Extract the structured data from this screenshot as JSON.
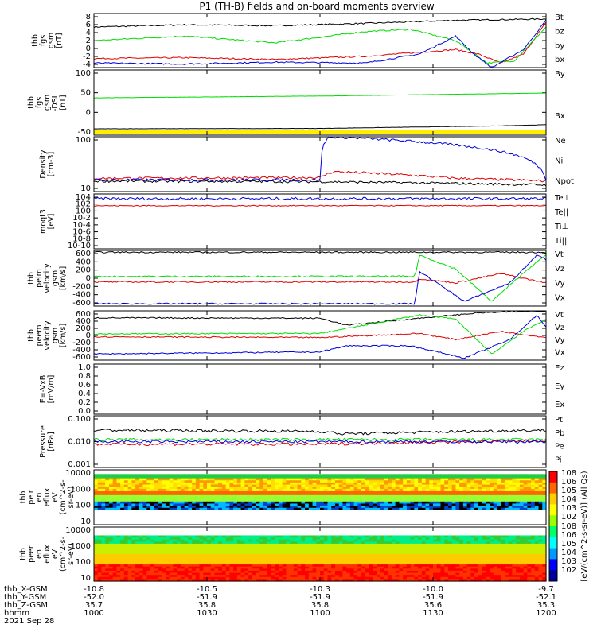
{
  "title": "P1 (TH-B) fields and on-board moments overview",
  "date": "2021 Sep 28",
  "colors": {
    "black": "#000000",
    "red": "#e00000",
    "green": "#00dd00",
    "blue": "#0000dd"
  },
  "ephemeris": {
    "labels": [
      "thb_X-GSM",
      "thb_Y-GSM",
      "thb_Z-GSM",
      "hhmm"
    ],
    "columns": [
      {
        "x": "-10.8",
        "y": "-52.0",
        "z": "35.7",
        "hhmm": "1000"
      },
      {
        "x": "-10.5",
        "y": "-51.9",
        "z": "35.8",
        "hhmm": "1030"
      },
      {
        "x": "-10.3",
        "y": "-51.9",
        "z": "35.8",
        "hhmm": "1100"
      },
      {
        "x": "-10.0",
        "y": "-51.9",
        "z": "35.6",
        "hhmm": "1130"
      },
      {
        "x": "-9.7",
        "y": "-52.1",
        "z": "35.3",
        "hhmm": "1200"
      }
    ]
  },
  "spectrogram_colorbar": {
    "label": "[eV/(cm^2-s-sr-eV)] (All Qs)",
    "upper_ticks": [
      "10^8",
      "10^6",
      "10^5",
      "10^4",
      "10^3",
      "10^2"
    ],
    "lower_ticks": [
      "10^8",
      "10^6",
      "10^5",
      "10^4",
      "10^3",
      "10^2"
    ]
  },
  "chart_data": [
    {
      "type": "line",
      "ylabel": [
        "thb",
        "fgs",
        "gsm",
        "[nT]"
      ],
      "yticks": [
        "8",
        "6",
        "4",
        "2",
        "0",
        "-2",
        "-4"
      ],
      "ylim": [
        -4,
        8
      ],
      "series": [
        {
          "name": "Bt",
          "color": "black",
          "points": [
            [
              0,
              5
            ],
            [
              0.2,
              5.5
            ],
            [
              0.4,
              5.3
            ],
            [
              0.6,
              5.8
            ],
            [
              0.8,
              6.5
            ],
            [
              1,
              6.8
            ]
          ]
        },
        {
          "name": "bz",
          "color": "red",
          "points": [
            [
              0,
              -2
            ],
            [
              0.2,
              -1.8
            ],
            [
              0.4,
              -2.2
            ],
            [
              0.6,
              -1.5
            ],
            [
              0.8,
              0
            ],
            [
              0.85,
              -1
            ],
            [
              0.9,
              -3
            ],
            [
              0.95,
              -1
            ],
            [
              1,
              6
            ]
          ]
        },
        {
          "name": "by",
          "color": "green",
          "points": [
            [
              0,
              2
            ],
            [
              0.2,
              3
            ],
            [
              0.4,
              1.5
            ],
            [
              0.6,
              4
            ],
            [
              0.7,
              4.5
            ],
            [
              0.8,
              2
            ],
            [
              0.87,
              -3
            ],
            [
              0.93,
              -2.5
            ],
            [
              1,
              5
            ]
          ]
        },
        {
          "name": "bx",
          "color": "blue",
          "points": [
            [
              0,
              -3
            ],
            [
              0.2,
              -3.2
            ],
            [
              0.4,
              -2.8
            ],
            [
              0.6,
              -3
            ],
            [
              0.72,
              -1
            ],
            [
              0.8,
              3
            ],
            [
              0.84,
              -1
            ],
            [
              0.88,
              -4
            ],
            [
              0.95,
              0
            ],
            [
              1,
              6.5
            ]
          ]
        }
      ]
    },
    {
      "type": "line",
      "ylabel": [
        "thb",
        "fgs",
        "gsm",
        "-DSL",
        "[nT]"
      ],
      "yticks": [
        "100",
        "50",
        "0",
        "-50"
      ],
      "ylim": [
        -75,
        100
      ],
      "series": [
        {
          "name": "By",
          "color": "green",
          "points": [
            [
              0,
              25
            ],
            [
              0.5,
              30
            ],
            [
              1,
              38
            ]
          ]
        },
        {
          "name": "Bx",
          "color": "black",
          "points": [
            [
              0,
              -58
            ],
            [
              0.5,
              -57
            ],
            [
              0.9,
              -50
            ],
            [
              1,
              -47
            ]
          ]
        }
      ]
    },
    {
      "type": "line",
      "ylabel": [
        "Density",
        "[cm-3]"
      ],
      "yticks": [
        "100",
        "10"
      ],
      "ylim": [
        1,
        300
      ],
      "log": true,
      "series": [
        {
          "name": "Ne",
          "color": "red",
          "points": [
            [
              0,
              4
            ],
            [
              0.5,
              4.3
            ],
            [
              0.53,
              8
            ],
            [
              0.6,
              7
            ],
            [
              0.8,
              4
            ],
            [
              1,
              3
            ]
          ]
        },
        {
          "name": "Ni",
          "color": "black",
          "points": [
            [
              0,
              3
            ],
            [
              0.5,
              2.8
            ],
            [
              0.7,
              2.5
            ],
            [
              1,
              2
            ]
          ]
        },
        {
          "name": "Npot",
          "color": "blue",
          "points": [
            [
              0,
              3.4
            ],
            [
              0.5,
              3.4
            ],
            [
              0.52,
              300
            ],
            [
              1,
              3.4
            ]
          ]
        }
      ]
    },
    {
      "type": "line",
      "ylabel": [
        "moqt3",
        "[eV]"
      ],
      "yticks": [
        "10^4",
        "10^2",
        "10^0",
        "10^-2",
        "10^-4",
        "10^-6",
        "10^-8",
        "10^-10"
      ],
      "ylim": [
        -10,
        4
      ],
      "log": true,
      "legend": [
        "Te⊥",
        "Te||",
        "Ti⊥",
        "Ti||"
      ],
      "series": [
        {
          "name": "Te⊥",
          "color": "red",
          "points": [
            [
              0,
              1
            ],
            [
              0.5,
              1
            ],
            [
              1,
              1
            ]
          ]
        },
        {
          "name": "Ti||",
          "color": "blue",
          "points": [
            [
              0,
              2.8
            ],
            [
              1,
              2.8
            ]
          ]
        }
      ]
    },
    {
      "type": "line",
      "ylabel": [
        "thb",
        "peim",
        "velocity",
        "gsm",
        "[km/s]"
      ],
      "yticks": [
        "600",
        "400",
        "200",
        "0",
        "-200",
        "-400",
        "-600"
      ],
      "ylim": [
        -600,
        600
      ],
      "series": [
        {
          "name": "Vt",
          "color": "black",
          "points": [
            [
              0,
              560
            ],
            [
              1,
              560
            ]
          ]
        },
        {
          "name": "Vz",
          "color": "red",
          "points": [
            [
              0,
              -80
            ],
            [
              0.71,
              -80
            ],
            [
              0.72,
              -10
            ],
            [
              0.8,
              -100
            ],
            [
              0.9,
              100
            ],
            [
              1,
              -100
            ]
          ]
        },
        {
          "name": "Vy",
          "color": "green",
          "points": [
            [
              0,
              40
            ],
            [
              0.71,
              40
            ],
            [
              0.72,
              500
            ],
            [
              0.8,
              200
            ],
            [
              0.88,
              -500
            ],
            [
              0.96,
              200
            ],
            [
              1,
              500
            ]
          ]
        },
        {
          "name": "Vx",
          "color": "blue",
          "points": [
            [
              0,
              -550
            ],
            [
              0.71,
              -550
            ],
            [
              0.72,
              150
            ],
            [
              0.82,
              -500
            ],
            [
              0.92,
              -100
            ],
            [
              0.98,
              500
            ],
            [
              1,
              400
            ]
          ]
        }
      ]
    },
    {
      "type": "line",
      "ylabel": [
        "thb",
        "peem",
        "velocity",
        "gsm",
        "[km/s]"
      ],
      "yticks": [
        "600",
        "400",
        "200",
        "0",
        "-200",
        "-400",
        "-600"
      ],
      "ylim": [
        -600,
        600
      ],
      "series": [
        {
          "name": "Vt",
          "color": "black",
          "points": [
            [
              0,
              430
            ],
            [
              0.5,
              420
            ],
            [
              0.56,
              250
            ],
            [
              0.7,
              400
            ],
            [
              0.85,
              550
            ],
            [
              1,
              600
            ]
          ]
        },
        {
          "name": "Vz",
          "color": "red",
          "points": [
            [
              0,
              -30
            ],
            [
              0.5,
              -50
            ],
            [
              0.72,
              50
            ],
            [
              0.8,
              -100
            ],
            [
              0.9,
              100
            ],
            [
              1,
              -50
            ]
          ]
        },
        {
          "name": "Vy",
          "color": "green",
          "points": [
            [
              0,
              40
            ],
            [
              0.5,
              50
            ],
            [
              0.72,
              500
            ],
            [
              0.8,
              400
            ],
            [
              0.88,
              -450
            ],
            [
              0.95,
              100
            ],
            [
              1,
              400
            ]
          ]
        },
        {
          "name": "Vx",
          "color": "blue",
          "points": [
            [
              0,
              -450
            ],
            [
              0.5,
              -400
            ],
            [
              0.56,
              -250
            ],
            [
              0.7,
              -250
            ],
            [
              0.82,
              -550
            ],
            [
              0.92,
              -100
            ],
            [
              0.98,
              500
            ],
            [
              1,
              200
            ]
          ]
        }
      ]
    },
    {
      "type": "line",
      "ylabel": [
        "E=-VxB",
        "[mV/m]"
      ],
      "yticks": [
        "1.0",
        "0.8",
        "0.6",
        "0.4",
        "0.2",
        "0.0"
      ],
      "ylim": [
        0,
        1
      ],
      "legend": [
        "Ez",
        "Ey",
        "Ex"
      ],
      "series": []
    },
    {
      "type": "line",
      "ylabel": [
        "Pressure",
        "[nPa]"
      ],
      "yticks": [
        "0.100",
        "0.010",
        "0.001"
      ],
      "ylim": [
        0.001,
        0.1
      ],
      "log": true,
      "series": [
        {
          "name": "Pt",
          "color": "black",
          "points": [
            [
              0,
              0.028
            ],
            [
              0.5,
              0.025
            ],
            [
              0.55,
              0.02
            ],
            [
              1,
              0.028
            ]
          ]
        },
        {
          "name": "Pb",
          "color": "red",
          "points": [
            [
              0,
              0.008
            ],
            [
              0.5,
              0.008
            ],
            [
              1,
              0.011
            ]
          ]
        },
        {
          "name": "Pe",
          "color": "green",
          "points": [
            [
              0,
              0.012
            ],
            [
              1,
              0.012
            ]
          ]
        },
        {
          "name": "Pi",
          "color": "blue",
          "points": [
            [
              0,
              0.01
            ],
            [
              1,
              0.01
            ]
          ]
        }
      ]
    },
    {
      "type": "heatmap",
      "ylabel": [
        "thb",
        "peir",
        "en",
        "eflux",
        "eV",
        "(cm^2-s-",
        "sr-eV)"
      ],
      "yticks": [
        "10000",
        "1000",
        "100",
        "10"
      ],
      "ylim": [
        5,
        20000
      ]
    },
    {
      "type": "heatmap",
      "ylabel": [
        "thb",
        "peer",
        "en",
        "eflux",
        "eV",
        "(cm^2-s-",
        "sr-eV)"
      ],
      "yticks": [
        "10000",
        "1000",
        "100",
        "10"
      ],
      "ylim": [
        5,
        20000
      ]
    }
  ]
}
